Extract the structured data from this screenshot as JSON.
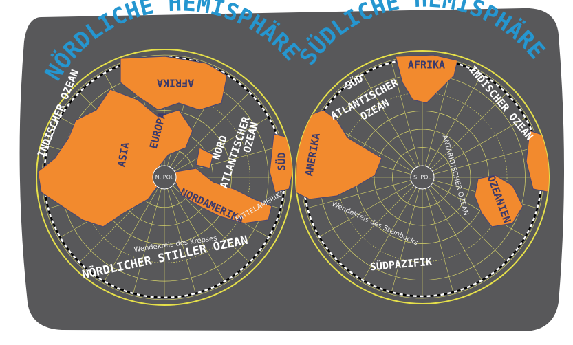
{
  "north": {
    "title": "NÖRDLICHE HEMISPHÄRE",
    "pole": "N. POL",
    "labels": [
      "AFRIKA",
      "INDISCHER OZEAN",
      "ASIA",
      "EUROPA",
      "NORD",
      "ATLANTISCHER",
      "OZEAN",
      "SÜD",
      "NORDAMERIKA",
      "MITTELAMERIKA",
      "Wendekreis des Krebses",
      "NÖRDLICHER STILLER OZEAN"
    ]
  },
  "south": {
    "title": "SÜDLICHE HEMISPHÄRE",
    "pole": "S. POL",
    "labels": [
      "AFRIKA",
      "INDISCHER OZEAN",
      "SÜD",
      "ATLANTISCHER",
      "OZEAN",
      "AMERIKA",
      "ANTARKTISCHER OZEAN",
      "OZEANIEN",
      "Wendekreis des Steinbocks",
      "SÜDPAZIFIK"
    ]
  }
}
